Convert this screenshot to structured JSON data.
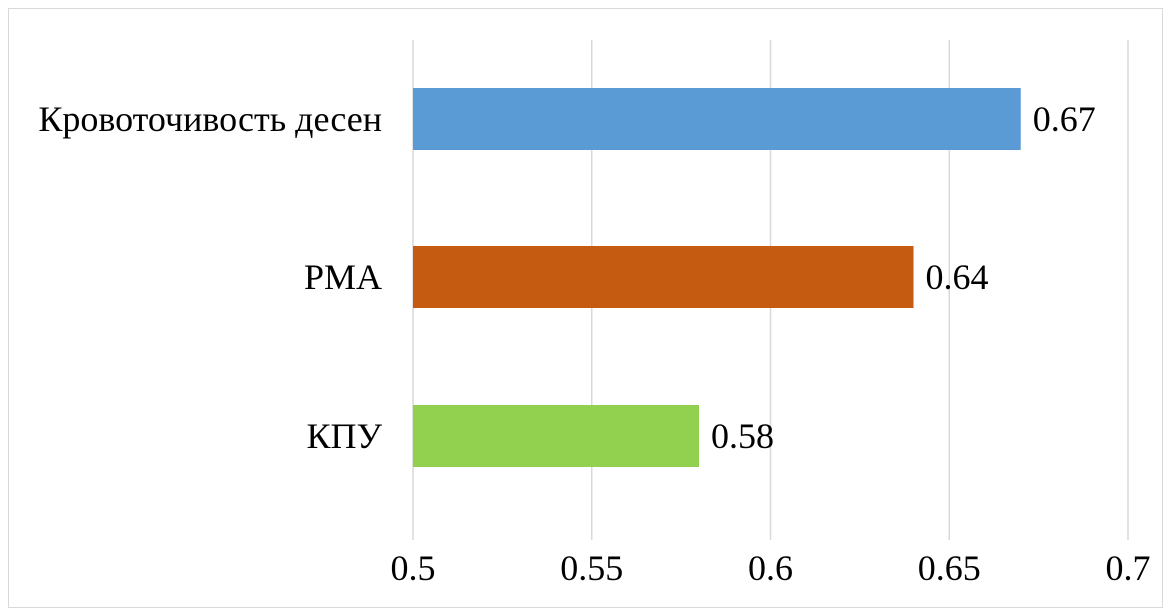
{
  "chart_data": {
    "type": "bar",
    "orientation": "horizontal",
    "categories": [
      "Кровоточивость десен",
      "PMA",
      "КПУ"
    ],
    "values": [
      0.67,
      0.64,
      0.58
    ],
    "data_labels": [
      "0.67",
      "0.64",
      "0.58"
    ],
    "colors": [
      "#5b9bd5",
      "#c55a11",
      "#92d050"
    ],
    "xlim": [
      0.5,
      0.7
    ],
    "xticks": [
      0.5,
      0.55,
      0.6,
      0.65,
      0.7
    ],
    "xtick_labels": [
      "0.5",
      "0.55",
      "0.6",
      "0.65",
      "0.7"
    ],
    "grid": "vertical",
    "legend": "none",
    "title": "",
    "xlabel": "",
    "ylabel": ""
  }
}
